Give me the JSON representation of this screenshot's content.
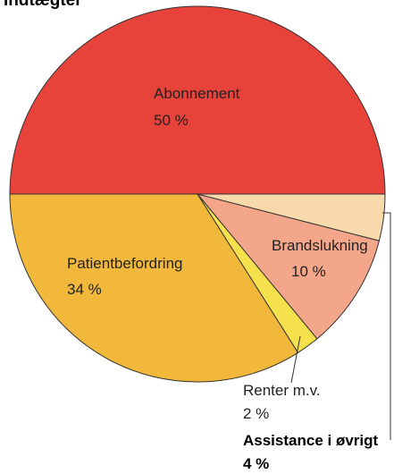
{
  "chart_data": {
    "type": "pie",
    "title": "Indtægter",
    "categories": [
      "Abonnement",
      "Assistance i øvrigt",
      "Brandslukning",
      "Renter m.v.",
      "Patientbefordring"
    ],
    "values": [
      50,
      4,
      10,
      2,
      34
    ],
    "value_labels": [
      "50 %",
      "4 %",
      "10 %",
      "2 %",
      "34 %"
    ],
    "colors": [
      "#e8433a",
      "#f8d9ab",
      "#f4a68b",
      "#f5e14c",
      "#f1b83b"
    ]
  }
}
